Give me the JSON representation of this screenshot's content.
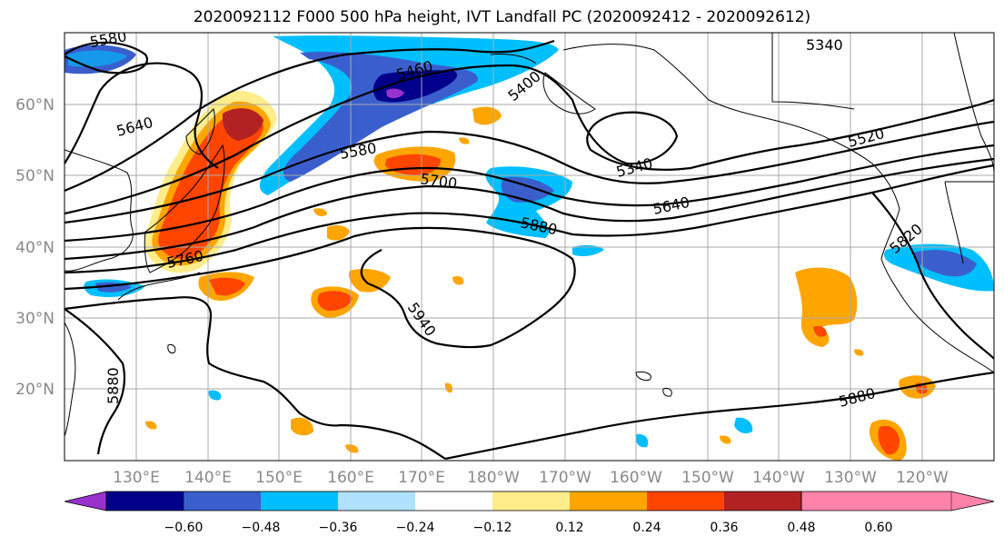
{
  "title": "2020092112 F000 500 hPa height, IVT Landfall PC (2020092412 - 2020092612)",
  "map": {
    "lat_labels": [
      "60°N",
      "50°N",
      "40°N",
      "30°N",
      "20°N"
    ],
    "lon_labels": [
      "130°E",
      "140°E",
      "150°E",
      "160°E",
      "170°E",
      "180°W",
      "170°W",
      "160°W",
      "150°W",
      "140°W",
      "130°W",
      "120°W"
    ],
    "contour_labels": [
      "5580",
      "5640",
      "5460",
      "5400",
      "5340",
      "5340",
      "5520",
      "5580",
      "5700",
      "5640",
      "5880",
      "5820",
      "5760",
      "5940",
      "5880",
      "5880"
    ]
  },
  "colorbar": {
    "ticks": [
      "−0.60",
      "−0.48",
      "−0.36",
      "−0.24",
      "−0.12",
      "0.12",
      "0.24",
      "0.36",
      "0.48",
      "0.60"
    ],
    "colors": [
      "#9932cc",
      "#00008b",
      "#3a5fcd",
      "#00bfff",
      "#b0e2ff",
      "#ffffff",
      "#ffec8b",
      "#ffa500",
      "#ff4500",
      "#b22222",
      "#ff82ab"
    ]
  }
}
